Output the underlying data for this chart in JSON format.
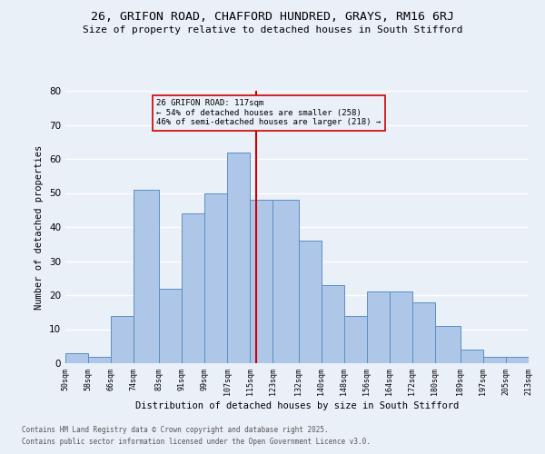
{
  "title": "26, GRIFON ROAD, CHAFFORD HUNDRED, GRAYS, RM16 6RJ",
  "subtitle": "Size of property relative to detached houses in South Stifford",
  "xlabel": "Distribution of detached houses by size in South Stifford",
  "ylabel": "Number of detached properties",
  "footer1": "Contains HM Land Registry data © Crown copyright and database right 2025.",
  "footer2": "Contains public sector information licensed under the Open Government Licence v3.0.",
  "bins": [
    50,
    58,
    66,
    74,
    83,
    91,
    99,
    107,
    115,
    123,
    132,
    140,
    148,
    156,
    164,
    172,
    180,
    189,
    197,
    205,
    213
  ],
  "bar_labels": [
    "50sqm",
    "58sqm",
    "66sqm",
    "74sqm",
    "83sqm",
    "91sqm",
    "99sqm",
    "107sqm",
    "115sqm",
    "123sqm",
    "132sqm",
    "140sqm",
    "148sqm",
    "156sqm",
    "164sqm",
    "172sqm",
    "180sqm",
    "189sqm",
    "197sqm",
    "205sqm",
    "213sqm"
  ],
  "bar_heights": [
    3,
    2,
    14,
    51,
    22,
    44,
    50,
    62,
    48,
    48,
    36,
    23,
    14,
    21,
    21,
    18,
    11,
    4,
    2,
    2,
    0
  ],
  "bar_color": "#aec6e8",
  "bar_edge_color": "#5a8fc2",
  "bg_color": "#eaf0f8",
  "grid_color": "#ffffff",
  "annotation_text": "26 GRIFON ROAD: 117sqm\n← 54% of detached houses are smaller (258)\n46% of semi-detached houses are larger (218) →",
  "vline_x": 117,
  "vline_color": "#cc0000",
  "annotation_box_color": "#cc0000",
  "ylim": [
    0,
    80
  ],
  "yticks": [
    0,
    10,
    20,
    30,
    40,
    50,
    60,
    70,
    80
  ]
}
